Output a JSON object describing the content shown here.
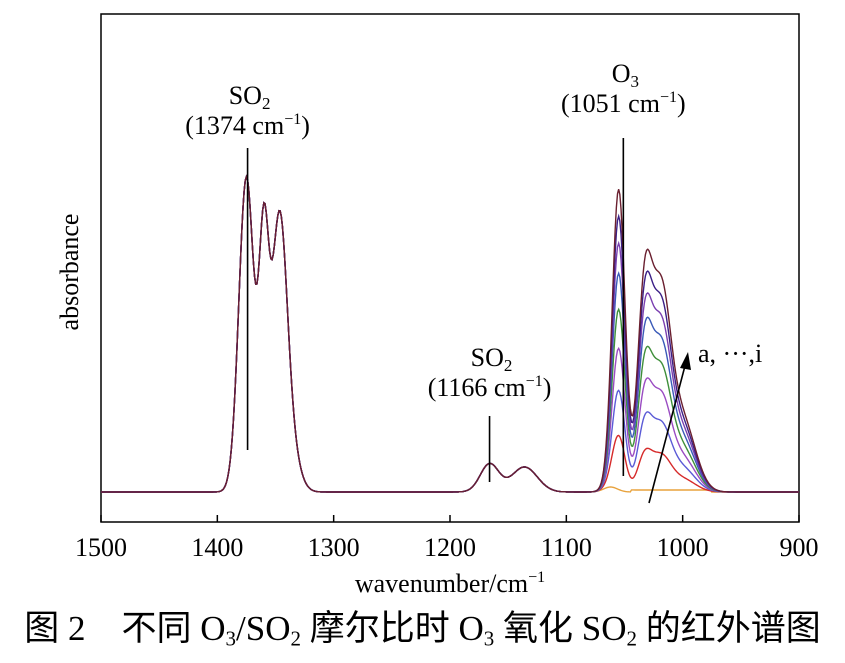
{
  "chart_data": {
    "type": "line",
    "xlabel_text": "wavenumber/cm",
    "xlabel_exp": "−1",
    "ylabel": "absorbance",
    "xlim": [
      1500,
      900
    ],
    "x_reversed": true,
    "xticks": [
      1500,
      1400,
      1300,
      1200,
      1100,
      1000,
      900
    ],
    "y_ticks_shown": false,
    "grid": false,
    "legend": "none",
    "annotations": [
      {
        "species": "SO",
        "sub": "2",
        "pos": "(1374 cm",
        "exp": "−1",
        "tail": ")",
        "x": 1374
      },
      {
        "species": "SO",
        "sub": "2",
        "pos": "(1166 cm",
        "exp": "−1",
        "tail": ")",
        "x": 1166
      },
      {
        "species": "O",
        "sub": "3",
        "pos": "(1051 cm",
        "exp": "−1",
        "tail": ")",
        "x": 1051
      }
    ],
    "series_label": "a, ···,i",
    "series": [
      {
        "color": "#e8a23c",
        "o3_scale": 0.0
      },
      {
        "color": "#d62a2a",
        "o3_scale": 0.18
      },
      {
        "color": "#5a5ad6",
        "o3_scale": 0.33
      },
      {
        "color": "#9a4cc2",
        "o3_scale": 0.47
      },
      {
        "color": "#3f8f3a",
        "o3_scale": 0.6
      },
      {
        "color": "#3a5ab8",
        "o3_scale": 0.72
      },
      {
        "color": "#7a3fb0",
        "o3_scale": 0.82
      },
      {
        "color": "#3b1f86",
        "o3_scale": 0.91
      },
      {
        "color": "#6a1f2f",
        "o3_scale": 1.0
      }
    ]
  },
  "caption": {
    "fig": "图 2",
    "pre": "不同 O",
    "s1": "3",
    "m1": "/SO",
    "s2": "2",
    "m2": " 摩尔比时 O",
    "s3": "3",
    "m3": " 氧化 SO",
    "s4": "2",
    "m4": " 的红外谱图"
  }
}
